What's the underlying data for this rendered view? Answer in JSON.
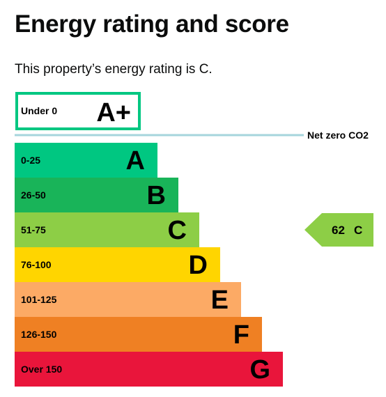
{
  "page": {
    "title": "Energy rating and score",
    "intro": "This property’s energy rating is C."
  },
  "chart_data": {
    "type": "bar",
    "top_band": {
      "range": "Under 0",
      "letter": "A+",
      "color": "#00c781"
    },
    "net_zero_label": "Net zero CO2",
    "net_zero_line_color": "#a6d5dc",
    "bands": [
      {
        "range": "0-25",
        "letter": "A",
        "color": "#00c781"
      },
      {
        "range": "26-50",
        "letter": "B",
        "color": "#19b459"
      },
      {
        "range": "51-75",
        "letter": "C",
        "color": "#8dce46"
      },
      {
        "range": "76-100",
        "letter": "D",
        "color": "#ffd500"
      },
      {
        "range": "101-125",
        "letter": "E",
        "color": "#fcaa65"
      },
      {
        "range": "126-150",
        "letter": "F",
        "color": "#ef8023"
      },
      {
        "range": "Over 150",
        "letter": "G",
        "color": "#e9153b"
      }
    ],
    "current": {
      "score": 62,
      "letter": "C",
      "band_index": 2,
      "color": "#8dce46"
    }
  }
}
